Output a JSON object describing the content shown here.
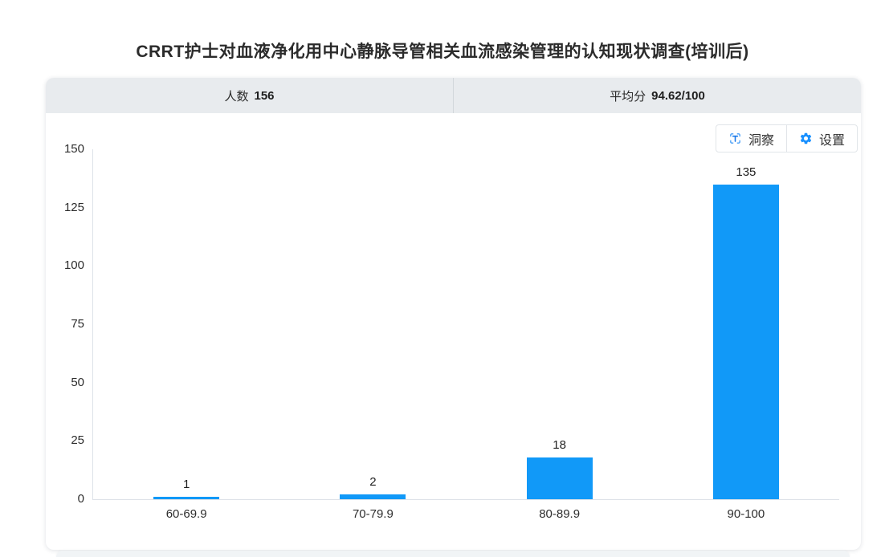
{
  "page": {
    "title": "CRRT护士对血液净化用中心静脉导管相关血流感染管理的认知现状调查(培训后)"
  },
  "stats": {
    "count_label": "人数",
    "count_value": "156",
    "avg_label": "平均分",
    "avg_value": "94.62/100"
  },
  "toolbar": {
    "insight_label": "洞察",
    "insight_icon": "text-scan-icon",
    "settings_label": "设置",
    "settings_icon": "gear-icon"
  },
  "colors": {
    "bar": "#1199f8",
    "icon_blue": "#1890ff",
    "icon_bracket_blue": "#4aa0f8",
    "header_bg": "#e8ebee"
  },
  "chart_data": {
    "type": "bar",
    "title": "CRRT护士对血液净化用中心静脉导管相关血流感染管理的认知现状调查(培训后)",
    "categories": [
      "60-69.9",
      "70-79.9",
      "80-89.9",
      "90-100"
    ],
    "values": [
      1,
      2,
      18,
      135
    ],
    "xlabel": "",
    "ylabel": "",
    "ylim": [
      0,
      150
    ],
    "yticks": [
      0,
      25,
      50,
      75,
      100,
      125,
      150
    ],
    "grid": false,
    "legend": "none",
    "value_labels": true,
    "bar_color": "#1199f8"
  }
}
